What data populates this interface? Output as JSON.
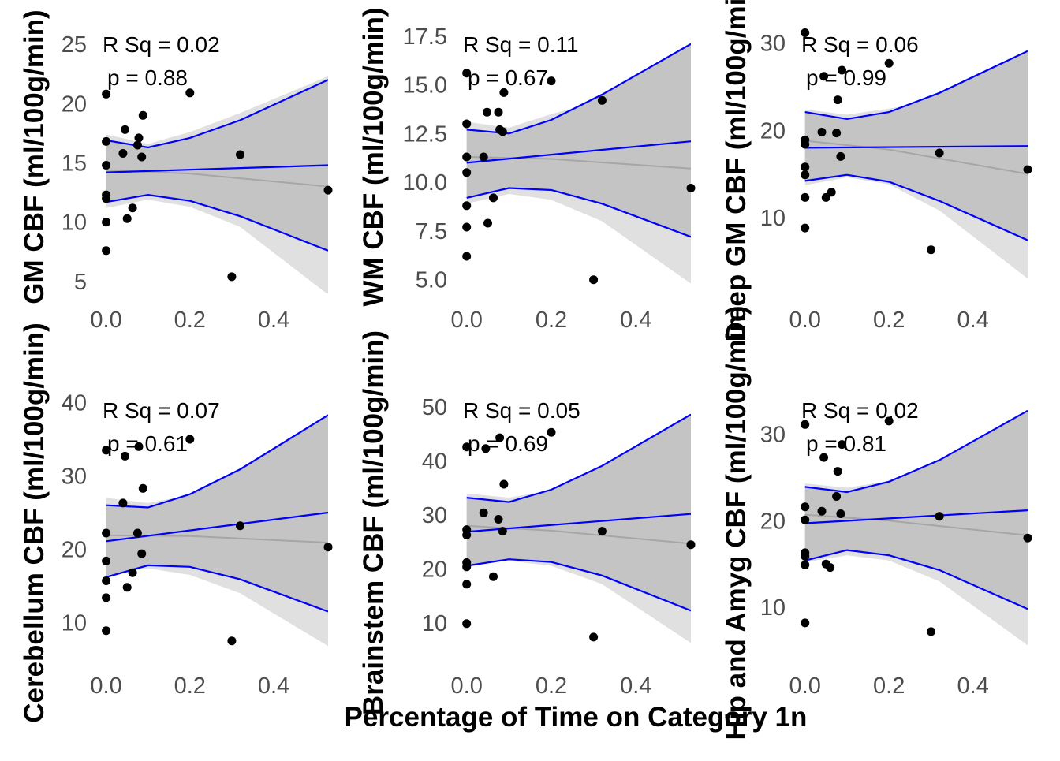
{
  "figure": {
    "x_title": "Percentage of Time on Category 1n",
    "colors": {
      "fit_line": "#0000ff",
      "ci_bands": "#0000ff",
      "outer_ribbon": "#e0e0e0",
      "inner_ribbon": "#c4c4c4",
      "loess_line": "#a6a6a6",
      "points": "#000000",
      "tick_text": "#4d4d4d"
    }
  },
  "chart_data": [
    {
      "type": "scatter",
      "ylabel": "GM CBF (ml/100g/min)",
      "xlabel": "",
      "xlim": [
        -0.02,
        0.53
      ],
      "ylim": [
        4,
        27
      ],
      "x_ticks": [
        "0.0",
        "0.2",
        "0.4"
      ],
      "x_tick_values": [
        0,
        0.2,
        0.4
      ],
      "y_ticks": [
        "5",
        "10",
        "15",
        "20",
        "25"
      ],
      "y_tick_values": [
        5,
        10,
        15,
        20,
        25
      ],
      "annotation_rsq": "R Sq =  0.02",
      "annotation_p": "p =  0.88",
      "grid": false,
      "points": [
        [
          0.0,
          20.8
        ],
        [
          0.0,
          16.8
        ],
        [
          0.0,
          14.8
        ],
        [
          0.0,
          12.3
        ],
        [
          0.0,
          12.0
        ],
        [
          0.0,
          10.0
        ],
        [
          0.0,
          7.6
        ],
        [
          0.04,
          15.8
        ],
        [
          0.045,
          17.8
        ],
        [
          0.05,
          10.3
        ],
        [
          0.063,
          11.2
        ],
        [
          0.075,
          16.5
        ],
        [
          0.078,
          17.1
        ],
        [
          0.085,
          15.5
        ],
        [
          0.088,
          19.0
        ],
        [
          0.2,
          20.9
        ],
        [
          0.3,
          5.4
        ],
        [
          0.32,
          15.7
        ],
        [
          0.53,
          12.7
        ]
      ],
      "fit": {
        "x": [
          0,
          0.53
        ],
        "y": [
          14.2,
          14.8
        ]
      },
      "ci_upper": {
        "x": [
          0,
          0.1,
          0.2,
          0.32,
          0.53
        ],
        "y": [
          16.9,
          16.3,
          17.1,
          18.6,
          22.0
        ]
      },
      "ci_lower": {
        "x": [
          0,
          0.1,
          0.2,
          0.32,
          0.53
        ],
        "y": [
          11.7,
          12.3,
          11.8,
          10.5,
          7.6
        ]
      },
      "outer_upper": {
        "x": [
          0,
          0.1,
          0.2,
          0.32,
          0.53
        ],
        "y": [
          17.4,
          16.6,
          17.6,
          19.2,
          22.3
        ]
      },
      "outer_lower": {
        "x": [
          0,
          0.1,
          0.2,
          0.32,
          0.53
        ],
        "y": [
          11.2,
          11.9,
          11.3,
          9.6,
          3.9
        ]
      },
      "loess": {
        "x": [
          0,
          0.2,
          0.53
        ],
        "y": [
          14.4,
          14.1,
          13.0
        ]
      }
    },
    {
      "type": "scatter",
      "ylabel": "WM CBF (ml/100g/min)",
      "xlabel": "",
      "xlim": [
        -0.02,
        0.53
      ],
      "ylim": [
        4.3,
        18.3
      ],
      "x_ticks": [
        "0.0",
        "0.2",
        "0.4"
      ],
      "x_tick_values": [
        0,
        0.2,
        0.4
      ],
      "y_ticks": [
        "5.0",
        "7.5",
        "10.0",
        "12.5",
        "15.0",
        "17.5"
      ],
      "y_tick_values": [
        5,
        7.5,
        10,
        12.5,
        15,
        17.5
      ],
      "annotation_rsq": "R Sq =  0.11",
      "annotation_p": "p =  0.67",
      "grid": false,
      "points": [
        [
          0.0,
          15.6
        ],
        [
          0.0,
          13.0
        ],
        [
          0.0,
          11.3
        ],
        [
          0.0,
          10.5
        ],
        [
          0.0,
          8.8
        ],
        [
          0.0,
          7.7
        ],
        [
          0.0,
          6.2
        ],
        [
          0.04,
          11.3
        ],
        [
          0.048,
          13.6
        ],
        [
          0.05,
          7.9
        ],
        [
          0.063,
          9.2
        ],
        [
          0.075,
          13.6
        ],
        [
          0.078,
          12.7
        ],
        [
          0.085,
          12.6
        ],
        [
          0.088,
          14.6
        ],
        [
          0.2,
          15.2
        ],
        [
          0.3,
          5.0
        ],
        [
          0.32,
          14.2
        ],
        [
          0.53,
          9.7
        ]
      ],
      "fit": {
        "x": [
          0,
          0.53
        ],
        "y": [
          11.0,
          12.1
        ]
      },
      "ci_upper": {
        "x": [
          0,
          0.1,
          0.2,
          0.32,
          0.53
        ],
        "y": [
          12.7,
          12.5,
          13.2,
          14.5,
          17.1
        ]
      },
      "ci_lower": {
        "x": [
          0,
          0.1,
          0.2,
          0.32,
          0.53
        ],
        "y": [
          9.2,
          9.7,
          9.6,
          8.9,
          7.2
        ]
      },
      "outer_upper": {
        "x": [
          0,
          0.1,
          0.2,
          0.32,
          0.53
        ],
        "y": [
          13.1,
          12.8,
          13.5,
          14.2,
          16.6
        ]
      },
      "outer_lower": {
        "x": [
          0,
          0.1,
          0.2,
          0.32,
          0.53
        ],
        "y": [
          8.9,
          9.4,
          9.1,
          8.0,
          4.8
        ]
      },
      "loess": {
        "x": [
          0,
          0.2,
          0.53
        ],
        "y": [
          11.3,
          11.2,
          10.7
        ]
      }
    },
    {
      "type": "scatter",
      "ylabel": "Deep GM CBF (ml/100g/min)",
      "xlabel": "",
      "xlim": [
        -0.02,
        0.53
      ],
      "ylim": [
        1.3,
        32.6
      ],
      "x_ticks": [
        "0.0",
        "0.2",
        "0.4"
      ],
      "x_tick_values": [
        0,
        0.2,
        0.4
      ],
      "y_ticks": [
        "10",
        "20",
        "30"
      ],
      "y_tick_values": [
        10,
        20,
        30
      ],
      "annotation_rsq": "R Sq =  0.06",
      "annotation_p": "p =  0.99",
      "grid": false,
      "points": [
        [
          0.0,
          31.2
        ],
        [
          0.0,
          18.9
        ],
        [
          0.0,
          18.4
        ],
        [
          0.0,
          15.8
        ],
        [
          0.0,
          14.9
        ],
        [
          0.0,
          12.3
        ],
        [
          0.0,
          8.8
        ],
        [
          0.04,
          19.8
        ],
        [
          0.045,
          26.2
        ],
        [
          0.05,
          12.3
        ],
        [
          0.063,
          12.9
        ],
        [
          0.075,
          19.7
        ],
        [
          0.078,
          23.5
        ],
        [
          0.085,
          17.0
        ],
        [
          0.088,
          26.9
        ],
        [
          0.2,
          27.7
        ],
        [
          0.3,
          6.3
        ],
        [
          0.32,
          17.4
        ],
        [
          0.53,
          15.5
        ]
      ],
      "fit": {
        "x": [
          0,
          0.53
        ],
        "y": [
          18.0,
          18.2
        ]
      },
      "ci_upper": {
        "x": [
          0,
          0.1,
          0.2,
          0.32,
          0.53
        ],
        "y": [
          22.1,
          21.3,
          22.1,
          24.3,
          29.1
        ]
      },
      "ci_lower": {
        "x": [
          0,
          0.1,
          0.2,
          0.32,
          0.53
        ],
        "y": [
          14.2,
          14.9,
          14.1,
          11.9,
          7.4
        ]
      },
      "outer_upper": {
        "x": [
          0,
          0.1,
          0.2,
          0.32,
          0.53
        ],
        "y": [
          22.4,
          21.8,
          22.5,
          23.4,
          26.0
        ]
      },
      "outer_lower": {
        "x": [
          0,
          0.1,
          0.2,
          0.32,
          0.53
        ],
        "y": [
          13.7,
          14.6,
          13.8,
          10.8,
          3.0
        ]
      },
      "loess": {
        "x": [
          0,
          0.2,
          0.53
        ],
        "y": [
          18.8,
          17.8,
          15.0
        ]
      }
    },
    {
      "type": "scatter",
      "ylabel": "Cerebellum CBF (ml/100g/min)",
      "xlabel": "",
      "xlim": [
        -0.02,
        0.53
      ],
      "ylim": [
        5.0,
        42.2
      ],
      "x_ticks": [
        "0.0",
        "0.2",
        "0.4"
      ],
      "x_tick_values": [
        0,
        0.2,
        0.4
      ],
      "y_ticks": [
        "10",
        "20",
        "30",
        "40"
      ],
      "y_tick_values": [
        10,
        20,
        30,
        40
      ],
      "annotation_rsq": "R Sq =  0.07",
      "annotation_p": "p =  0.61",
      "grid": false,
      "points": [
        [
          0.0,
          33.5
        ],
        [
          0.0,
          22.2
        ],
        [
          0.0,
          18.4
        ],
        [
          0.0,
          15.7
        ],
        [
          0.0,
          13.4
        ],
        [
          0.0,
          8.9
        ],
        [
          0.04,
          26.3
        ],
        [
          0.045,
          32.7
        ],
        [
          0.05,
          14.8
        ],
        [
          0.063,
          16.8
        ],
        [
          0.075,
          22.2
        ],
        [
          0.078,
          34.0
        ],
        [
          0.085,
          19.4
        ],
        [
          0.088,
          28.3
        ],
        [
          0.2,
          35.0
        ],
        [
          0.3,
          7.5
        ],
        [
          0.32,
          23.2
        ],
        [
          0.53,
          20.3
        ]
      ],
      "fit": {
        "x": [
          0,
          0.53
        ],
        "y": [
          21.1,
          25.0
        ]
      },
      "ci_upper": {
        "x": [
          0,
          0.1,
          0.2,
          0.32,
          0.53
        ],
        "y": [
          26.0,
          25.7,
          27.5,
          30.9,
          38.3
        ]
      },
      "ci_lower": {
        "x": [
          0,
          0.1,
          0.2,
          0.32,
          0.53
        ],
        "y": [
          16.2,
          17.8,
          17.6,
          15.9,
          11.5
        ]
      },
      "outer_upper": {
        "x": [
          0,
          0.1,
          0.2,
          0.32,
          0.53
        ],
        "y": [
          27.0,
          26.3,
          27.4,
          29.6,
          34.7
        ]
      },
      "outer_lower": {
        "x": [
          0,
          0.1,
          0.2,
          0.32,
          0.53
        ],
        "y": [
          16.5,
          17.4,
          16.5,
          14.0,
          6.8
        ]
      },
      "loess": {
        "x": [
          0,
          0.2,
          0.53
        ],
        "y": [
          21.9,
          21.8,
          20.9
        ]
      }
    },
    {
      "type": "scatter",
      "ylabel": "Brainstem CBF (ml/100g/min)",
      "xlabel": "",
      "xlim": [
        -0.02,
        0.53
      ],
      "ylim": [
        3.3,
        53.8
      ],
      "x_ticks": [
        "0.0",
        "0.2",
        "0.4"
      ],
      "x_tick_values": [
        0,
        0.2,
        0.4
      ],
      "y_ticks": [
        "10",
        "20",
        "30",
        "40",
        "50"
      ],
      "y_tick_values": [
        10,
        20,
        30,
        40,
        50
      ],
      "annotation_rsq": "R Sq =  0.05",
      "annotation_p": "p =  0.69",
      "grid": false,
      "points": [
        [
          0.0,
          42.6
        ],
        [
          0.0,
          27.3
        ],
        [
          0.0,
          26.3
        ],
        [
          0.0,
          21.2
        ],
        [
          0.0,
          20.4
        ],
        [
          0.0,
          17.2
        ],
        [
          0.0,
          9.9
        ],
        [
          0.04,
          30.4
        ],
        [
          0.045,
          42.3
        ],
        [
          0.063,
          18.6
        ],
        [
          0.075,
          29.2
        ],
        [
          0.078,
          44.3
        ],
        [
          0.085,
          27.0
        ],
        [
          0.088,
          35.7
        ],
        [
          0.2,
          45.3
        ],
        [
          0.3,
          7.4
        ],
        [
          0.32,
          27.0
        ],
        [
          0.53,
          24.5
        ]
      ],
      "fit": {
        "x": [
          0,
          0.53
        ],
        "y": [
          26.9,
          30.2
        ]
      },
      "ci_upper": {
        "x": [
          0,
          0.1,
          0.2,
          0.32,
          0.53
        ],
        "y": [
          33.2,
          32.4,
          34.7,
          39.1,
          48.6
        ]
      },
      "ci_lower": {
        "x": [
          0,
          0.1,
          0.2,
          0.32,
          0.53
        ],
        "y": [
          20.6,
          21.8,
          21.3,
          18.8,
          12.3
        ]
      },
      "outer_upper": {
        "x": [
          0,
          0.1,
          0.2,
          0.32,
          0.53
        ],
        "y": [
          34.0,
          33.2,
          34.6,
          37.4,
          45.2
        ]
      },
      "outer_lower": {
        "x": [
          0,
          0.1,
          0.2,
          0.32,
          0.53
        ],
        "y": [
          20.8,
          21.5,
          20.6,
          17.2,
          6.3
        ]
      },
      "loess": {
        "x": [
          0,
          0.2,
          0.53
        ],
        "y": [
          28.0,
          27.1,
          24.7
        ]
      }
    },
    {
      "type": "scatter",
      "ylabel": "Hip and Amyg CBF (ml/100g/min)",
      "xlabel": "",
      "xlim": [
        -0.02,
        0.53
      ],
      "ylim": [
        4.0,
        35.5
      ],
      "x_ticks": [
        "0.0",
        "0.2",
        "0.4"
      ],
      "x_tick_values": [
        0,
        0.2,
        0.4
      ],
      "y_ticks": [
        "10",
        "20",
        "30"
      ],
      "y_tick_values": [
        10,
        20,
        30
      ],
      "annotation_rsq": "R Sq =  0.02",
      "annotation_p": "p =  0.81",
      "grid": false,
      "points": [
        [
          0.0,
          31.1
        ],
        [
          0.0,
          21.6
        ],
        [
          0.0,
          20.1
        ],
        [
          0.0,
          16.3
        ],
        [
          0.0,
          15.9
        ],
        [
          0.0,
          14.9
        ],
        [
          0.0,
          8.2
        ],
        [
          0.04,
          21.1
        ],
        [
          0.045,
          27.3
        ],
        [
          0.05,
          15.0
        ],
        [
          0.06,
          14.6
        ],
        [
          0.075,
          22.8
        ],
        [
          0.078,
          25.7
        ],
        [
          0.085,
          20.8
        ],
        [
          0.088,
          28.8
        ],
        [
          0.2,
          31.5
        ],
        [
          0.3,
          7.2
        ],
        [
          0.32,
          20.5
        ],
        [
          0.53,
          18.0
        ]
      ],
      "fit": {
        "x": [
          0,
          0.53
        ],
        "y": [
          19.7,
          21.2
        ]
      },
      "ci_upper": {
        "x": [
          0,
          0.1,
          0.2,
          0.32,
          0.53
        ],
        "y": [
          23.9,
          23.3,
          24.5,
          27.0,
          32.7
        ]
      },
      "ci_lower": {
        "x": [
          0,
          0.1,
          0.2,
          0.32,
          0.53
        ],
        "y": [
          15.4,
          16.6,
          16.0,
          14.3,
          9.8
        ]
      },
      "outer_upper": {
        "x": [
          0,
          0.1,
          0.2,
          0.32,
          0.53
        ],
        "y": [
          24.3,
          23.8,
          24.6,
          26.1,
          30.3
        ]
      },
      "outer_lower": {
        "x": [
          0,
          0.1,
          0.2,
          0.32,
          0.53
        ],
        "y": [
          15.2,
          16.0,
          15.4,
          13.0,
          5.6
        ]
      },
      "loess": {
        "x": [
          0,
          0.2,
          0.53
        ],
        "y": [
          20.7,
          20.0,
          18.3
        ]
      }
    }
  ]
}
